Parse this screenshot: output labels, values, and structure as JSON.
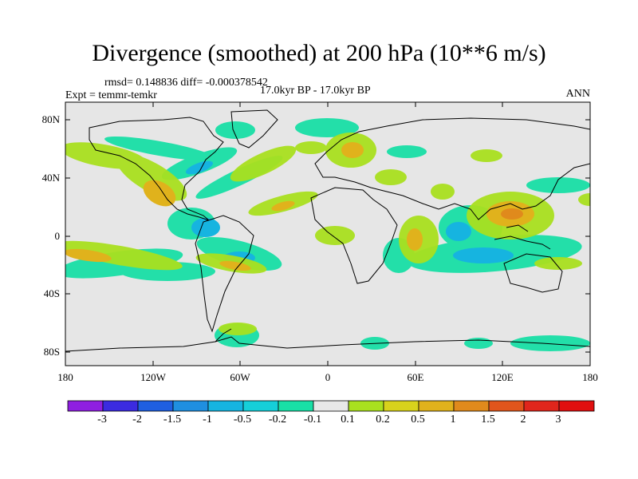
{
  "title": "Divergence (smoothed) at 200 hPa (10**6 m/s)",
  "stats": "rmsd= 0.148836 diff= -0.000378542",
  "experiment": "Expt = temmr-temkr",
  "period": "17.0kyr BP - 17.0kyr BP",
  "season": "ANN",
  "map": {
    "lat_ticks": [
      "80N",
      "40N",
      "0",
      "40S",
      "80S"
    ],
    "lon_ticks": [
      "180",
      "120W",
      "60W",
      "0",
      "60E",
      "120E",
      "180"
    ],
    "background_color": "#e6e6e6"
  },
  "colorbar": {
    "labels": [
      "-3",
      "-2",
      "-1.5",
      "-1",
      "-0.5",
      "-0.2",
      "-0.1",
      "0.1",
      "0.2",
      "0.5",
      "1",
      "1.5",
      "2",
      "3"
    ],
    "colors": [
      "#8f1fe0",
      "#3b2be0",
      "#1f5fe0",
      "#1f8fe0",
      "#16b4e0",
      "#16cfd9",
      "#19dfa6",
      "#e8e8e8",
      "#a9e01f",
      "#d8d21c",
      "#e0b21c",
      "#e08a1c",
      "#e0551c",
      "#e0261c",
      "#e00f0f"
    ]
  }
}
